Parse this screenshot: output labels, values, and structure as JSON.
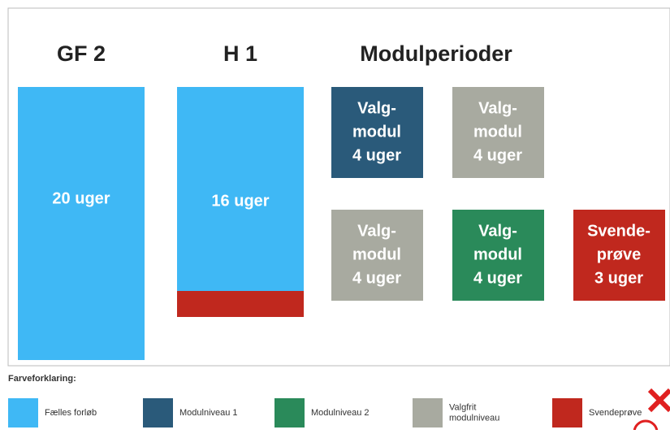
{
  "headings": [
    "GF 2",
    "H 1",
    "Modulperioder"
  ],
  "bars": [
    {
      "label": "20 uger"
    },
    {
      "label": "16 uger"
    }
  ],
  "modules": [
    {
      "lines": [
        "Valg-",
        "modul",
        "4 uger"
      ]
    },
    {
      "lines": [
        "Valg-",
        "modul",
        "4 uger"
      ]
    },
    {
      "lines": [
        "Valg-",
        "modul",
        "4 uger"
      ]
    },
    {
      "lines": [
        "Valg-",
        "modul",
        "4 uger"
      ]
    },
    {
      "lines": [
        "Svende-",
        "prøve",
        "3 uger"
      ]
    }
  ],
  "legend": {
    "title": "Farveforklaring:",
    "items": [
      {
        "lines": [
          "Fælles forløb"
        ]
      },
      {
        "lines": [
          "Modulniveau 1"
        ]
      },
      {
        "lines": [
          "Modulniveau 2"
        ]
      },
      {
        "lines": [
          "Valgfrit",
          "modulniveau"
        ]
      },
      {
        "lines": [
          "Svendeprøve"
        ]
      }
    ]
  }
}
